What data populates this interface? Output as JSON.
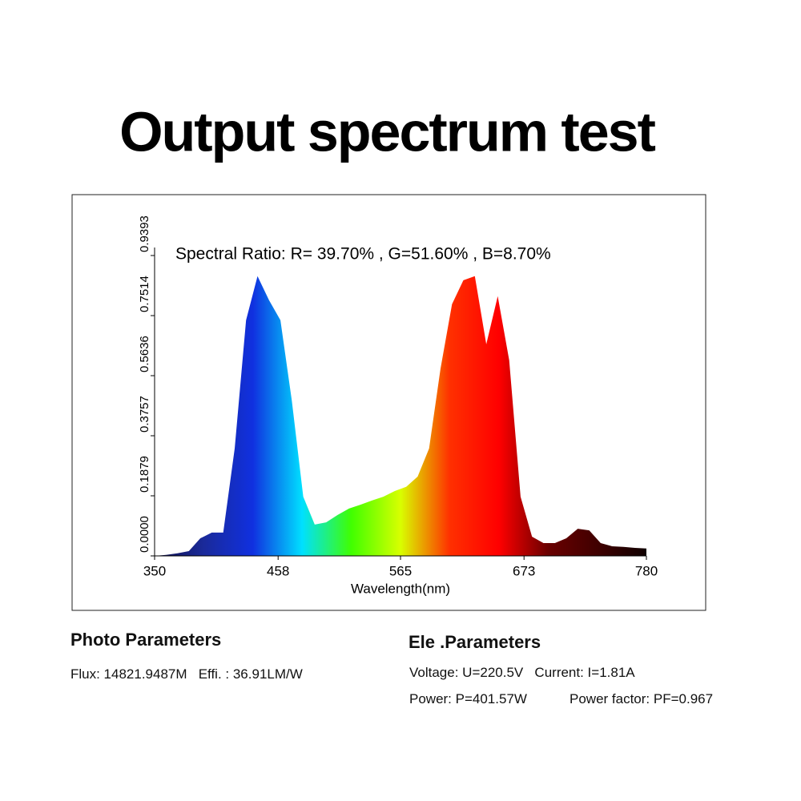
{
  "chart_data": {
    "type": "area",
    "title": "Output spectrum test",
    "annotation": "Spectral   Ratio:  R= 39.70% , G=51.60% , B=8.70%",
    "x_label": "Wavelength(nm)",
    "x": [
      350,
      360,
      370,
      380,
      390,
      400,
      410,
      420,
      430,
      440,
      450,
      460,
      470,
      480,
      490,
      500,
      510,
      520,
      530,
      540,
      550,
      560,
      570,
      580,
      590,
      600,
      610,
      620,
      630,
      640,
      650,
      660,
      670,
      680,
      690,
      700,
      710,
      720,
      730,
      740,
      750,
      760,
      770,
      780
    ],
    "values": [
      0,
      0.003,
      0.008,
      0.015,
      0.055,
      0.073,
      0.073,
      0.336,
      0.737,
      0.875,
      0.8,
      0.737,
      0.486,
      0.185,
      0.098,
      0.105,
      0.128,
      0.148,
      0.16,
      0.173,
      0.185,
      0.203,
      0.216,
      0.248,
      0.336,
      0.586,
      0.787,
      0.862,
      0.875,
      0.662,
      0.812,
      0.612,
      0.185,
      0.06,
      0.04,
      0.04,
      0.055,
      0.085,
      0.08,
      0.04,
      0.03,
      0.028,
      0.025,
      0.023
    ],
    "colors": [
      "#10104a",
      "#1a2a9a",
      "#1030e0",
      "#00e0ff",
      "#40ff00",
      "#d8ff00",
      "#ff3000",
      "#ff0000",
      "#6a0000",
      "#400000",
      "#100000"
    ],
    "xlim": [
      350,
      780
    ],
    "xticks": [
      350,
      458,
      565,
      673,
      780
    ],
    "ylim": [
      0,
      0.9393
    ],
    "yticks": [
      {
        "value": 0,
        "label": "0.0000"
      },
      0.1879,
      0.3757,
      0.5636,
      0.7514,
      0.9393
    ]
  },
  "photo_parameters": {
    "heading": "Photo Parameters",
    "line": "Flux: 14821.9487M   Effi. : 36.91LM/W"
  },
  "ele_parameters": {
    "heading": "Ele .Parameters",
    "line1": "Voltage: U=220.5V   Current: I=1.81A",
    "power": "Power: P=401.57W",
    "power_factor": "Power factor: PF=0.967"
  }
}
